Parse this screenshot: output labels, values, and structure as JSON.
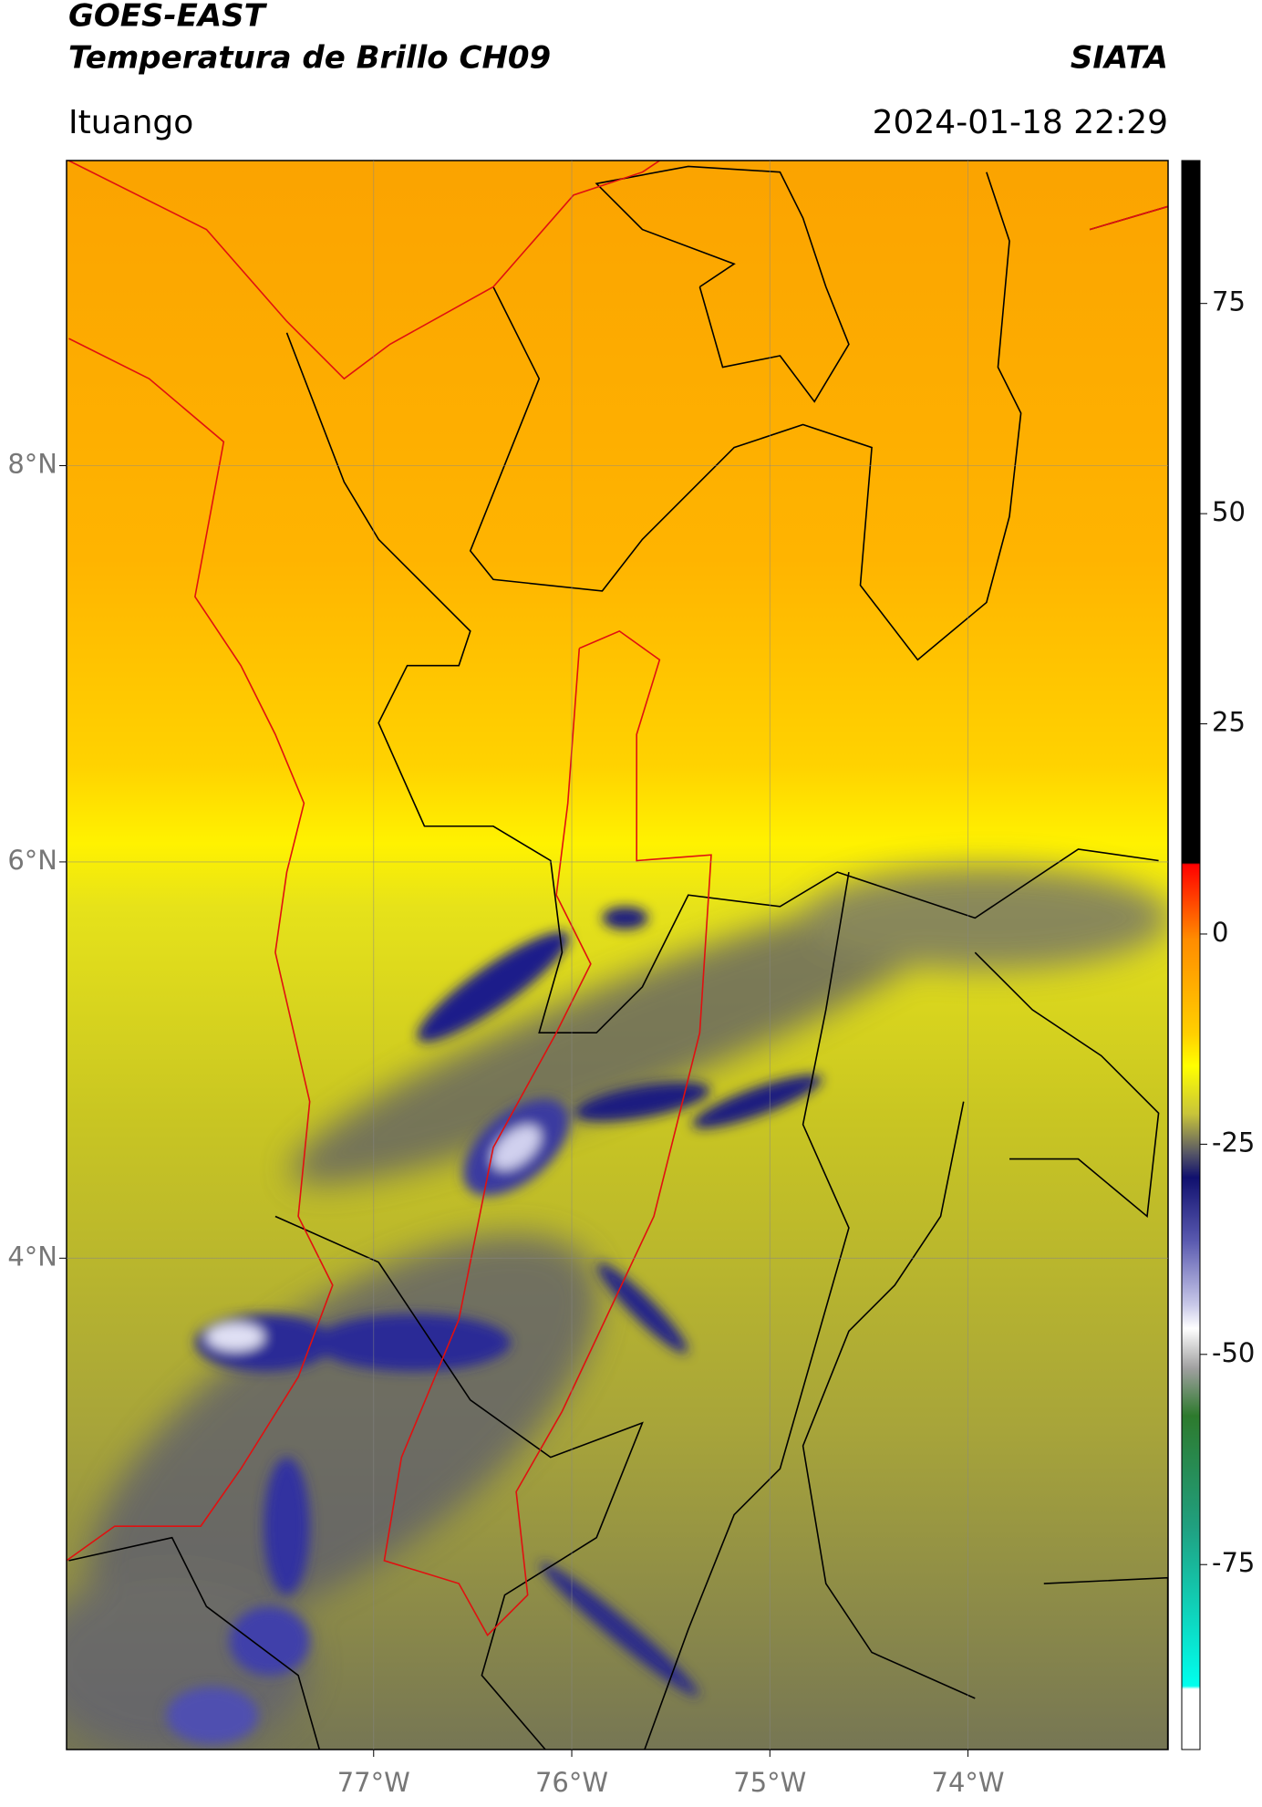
{
  "map": {
    "title": "GOES-EAST",
    "subtitle": "Temperatura de Brillo CH09",
    "brand": "SIATA",
    "location": "Ituango",
    "datetime": "2024-01-18 22:29",
    "xlim": [
      -78.55,
      -72.99
    ],
    "ylim": [
      1.52,
      9.54
    ],
    "xticks": [
      {
        "value": -77,
        "label": "77°W"
      },
      {
        "value": -76,
        "label": "76°W"
      },
      {
        "value": -75,
        "label": "75°W"
      },
      {
        "value": -74,
        "label": "74°W"
      }
    ],
    "yticks": [
      {
        "value": 8,
        "label": "8°N"
      },
      {
        "value": 6,
        "label": "6°N"
      },
      {
        "value": 4,
        "label": "4°N"
      }
    ],
    "grid": true,
    "colorbar": {
      "lim": [
        -97,
        92
      ],
      "ticks": [
        75,
        50,
        25,
        0,
        -25,
        -50,
        -75
      ]
    }
  }
}
